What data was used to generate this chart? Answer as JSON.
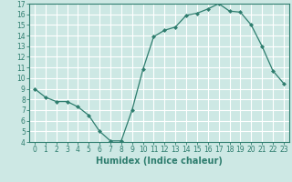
{
  "x": [
    0,
    1,
    2,
    3,
    4,
    5,
    6,
    7,
    8,
    9,
    10,
    11,
    12,
    13,
    14,
    15,
    16,
    17,
    18,
    19,
    20,
    21,
    22,
    23
  ],
  "y": [
    9.0,
    8.2,
    7.8,
    7.8,
    7.3,
    6.5,
    5.0,
    4.1,
    4.1,
    7.0,
    10.8,
    13.9,
    14.5,
    14.8,
    15.9,
    16.1,
    16.5,
    17.0,
    16.3,
    16.2,
    15.0,
    13.0,
    10.7,
    9.5
  ],
  "line_color": "#2e7d6e",
  "marker": "D",
  "marker_size": 2.0,
  "bg_color": "#cde8e4",
  "grid_color": "#ffffff",
  "xlabel": "Humidex (Indice chaleur)",
  "xlim": [
    -0.5,
    23.5
  ],
  "ylim": [
    4,
    17
  ],
  "yticks": [
    4,
    5,
    6,
    7,
    8,
    9,
    10,
    11,
    12,
    13,
    14,
    15,
    16,
    17
  ],
  "xticks": [
    0,
    1,
    2,
    3,
    4,
    5,
    6,
    7,
    8,
    9,
    10,
    11,
    12,
    13,
    14,
    15,
    16,
    17,
    18,
    19,
    20,
    21,
    22,
    23
  ],
  "tick_label_size": 5.5,
  "xlabel_size": 7.0,
  "line_color_hex": "#2e7d6e"
}
